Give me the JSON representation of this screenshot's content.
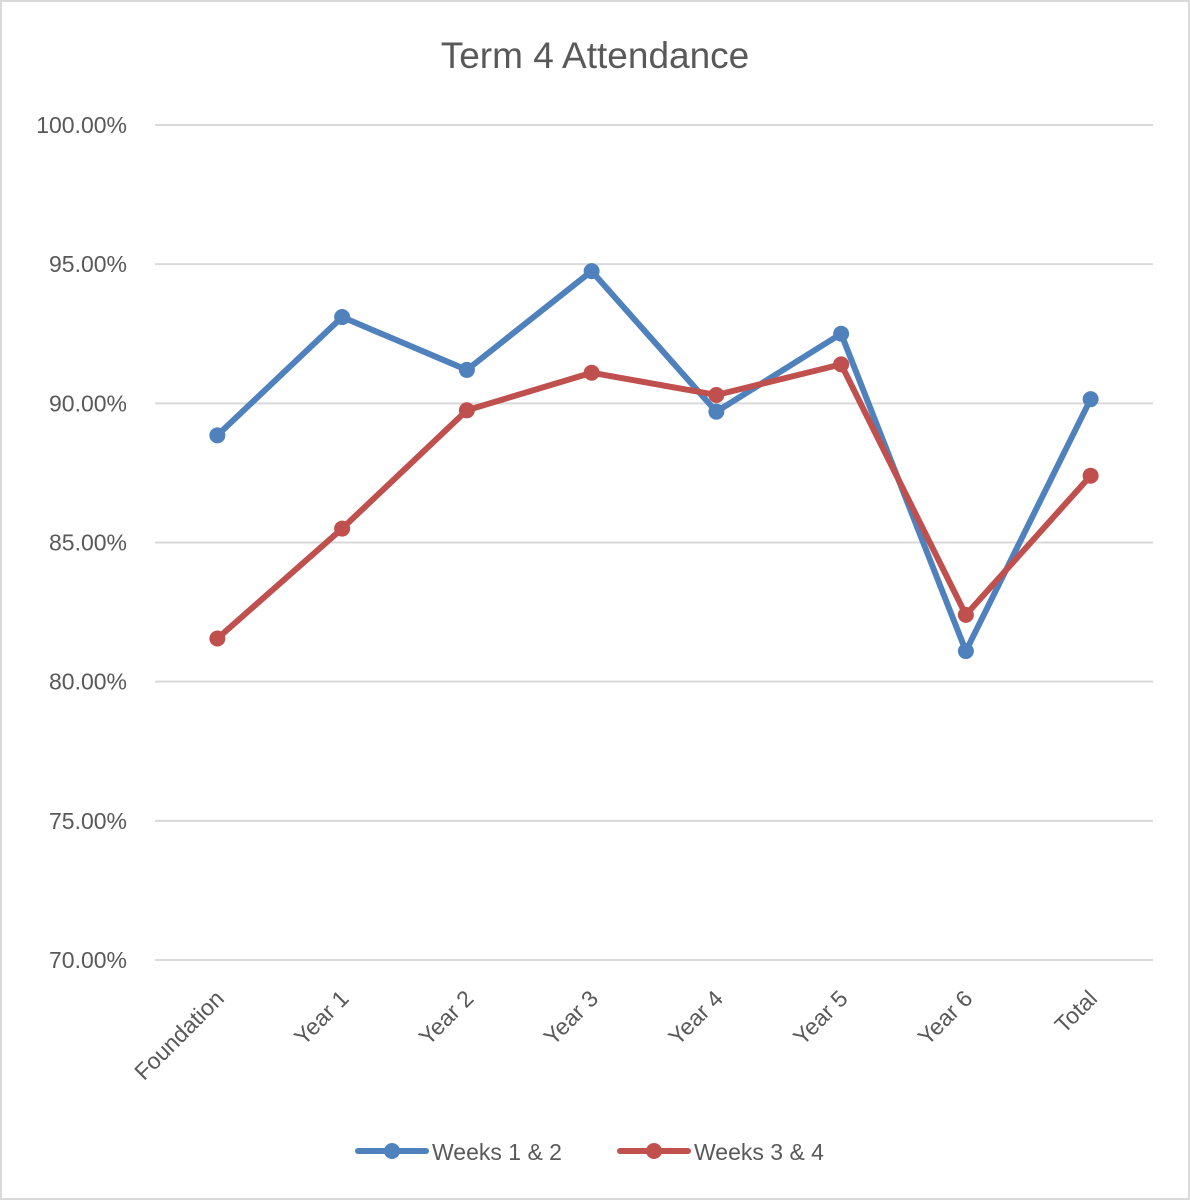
{
  "chart_data": {
    "type": "line",
    "title": "Term 4 Attendance",
    "categories": [
      "Foundation",
      "Year 1",
      "Year 2",
      "Year 3",
      "Year 4",
      "Year 5",
      "Year 6",
      "Total"
    ],
    "yticks": [
      "100.00%",
      "95.00%",
      "90.00%",
      "85.00%",
      "80.00%",
      "75.00%",
      "70.00%"
    ],
    "ylim": [
      70,
      100
    ],
    "ystep": 5,
    "grid": true,
    "legend_position": "bottom",
    "series": [
      {
        "name": "Weeks 1 & 2",
        "color": "#4f81bd",
        "values": [
          88.85,
          93.1,
          91.2,
          94.75,
          89.7,
          92.5,
          81.1,
          90.15
        ]
      },
      {
        "name": "Weeks 3 & 4",
        "color": "#c0504d",
        "values": [
          81.55,
          85.5,
          89.75,
          91.1,
          90.3,
          91.4,
          82.4,
          87.4
        ]
      }
    ]
  }
}
